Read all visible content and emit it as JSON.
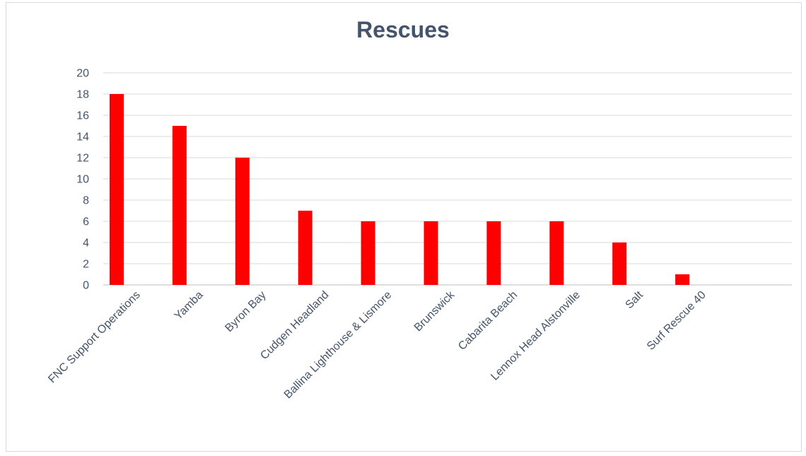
{
  "chart_data": {
    "type": "bar",
    "title": "Rescues",
    "xlabel": "",
    "ylabel": "",
    "categories": [
      "FNC Support Operations",
      "Yamba",
      "Byron Bay",
      "Cudgen Headland",
      "Ballina Lighthouse & Lismore",
      "Brunswick",
      "Cabarita Beach",
      "Lennox Head Alstonville",
      "Salt",
      "Surf Rescue 40"
    ],
    "values": [
      18,
      15,
      12,
      7,
      6,
      6,
      6,
      6,
      4,
      1
    ],
    "ylim": [
      0,
      20
    ],
    "yticks": [
      "0",
      "2",
      "4",
      "6",
      "8",
      "10",
      "12",
      "14",
      "16",
      "18",
      "20"
    ],
    "grid": true,
    "legend": "none",
    "bar_color": "#ff0000"
  }
}
